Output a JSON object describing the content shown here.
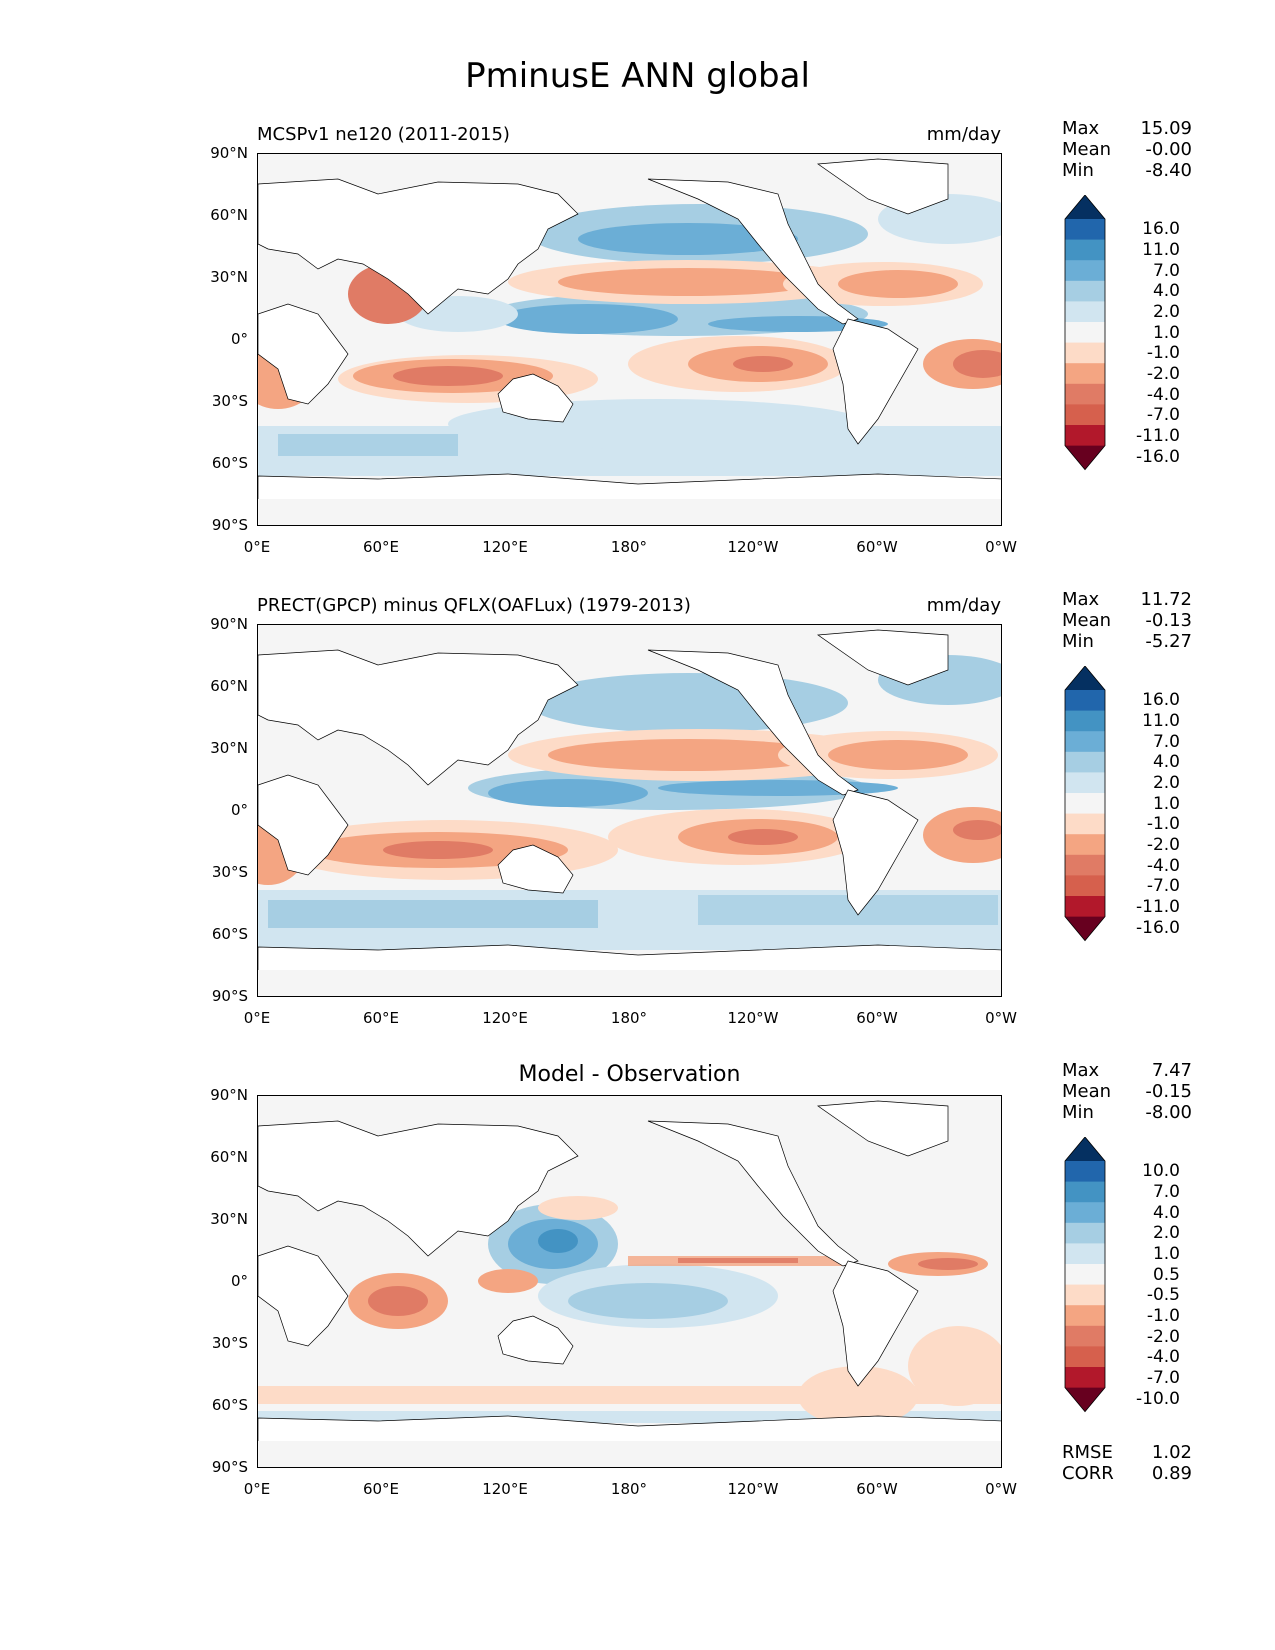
{
  "figure": {
    "title": "PminusE ANN global"
  },
  "axes": {
    "lat_labels": [
      "90°N",
      "60°N",
      "30°N",
      "0°",
      "30°S",
      "60°S",
      "90°S"
    ],
    "lon_labels": [
      "0°E",
      "60°E",
      "120°E",
      "180°",
      "120°W",
      "60°W",
      "0°W"
    ]
  },
  "panels": [
    {
      "title": "MCSPv1 ne120 (2011-2015)",
      "units": "mm/day",
      "stats": {
        "max_label": "Max",
        "max": "15.09",
        "mean_label": "Mean",
        "mean": "-0.00",
        "min_label": "Min",
        "min": "-8.40"
      },
      "colorbar": [
        "16.0",
        "11.0",
        "7.0",
        "4.0",
        "2.0",
        "1.0",
        "-1.0",
        "-2.0",
        "-4.0",
        "-7.0",
        "-11.0",
        "-16.0"
      ]
    },
    {
      "title": "PRECT(GPCP) minus QFLX(OAFLux) (1979-2013)",
      "units": "mm/day",
      "stats": {
        "max_label": "Max",
        "max": "11.72",
        "mean_label": "Mean",
        "mean": "-0.13",
        "min_label": "Min",
        "min": "-5.27"
      },
      "colorbar": [
        "16.0",
        "11.0",
        "7.0",
        "4.0",
        "2.0",
        "1.0",
        "-1.0",
        "-2.0",
        "-4.0",
        "-7.0",
        "-11.0",
        "-16.0"
      ]
    },
    {
      "title": "Model - Observation",
      "units": "",
      "stats": {
        "max_label": "Max",
        "max": "7.47",
        "mean_label": "Mean",
        "mean": "-0.15",
        "min_label": "Min",
        "min": "-8.00"
      },
      "colorbar": [
        "10.0",
        "7.0",
        "4.0",
        "2.0",
        "1.0",
        "0.5",
        "-0.5",
        "-1.0",
        "-2.0",
        "-4.0",
        "-7.0",
        "-10.0"
      ],
      "metrics": {
        "rmse_label": "RMSE",
        "rmse": "1.02",
        "corr_label": "CORR",
        "corr": "0.89"
      }
    }
  ],
  "colors": {
    "cbar": [
      "#053061",
      "#2166ac",
      "#4393c3",
      "#6baed6",
      "#a6cee3",
      "#d1e5f0",
      "#f5f5f5",
      "#fddbc7",
      "#f4a582",
      "#e07b65",
      "#d6604d",
      "#b2182b",
      "#67001f"
    ],
    "land_outline": "#000000"
  }
}
